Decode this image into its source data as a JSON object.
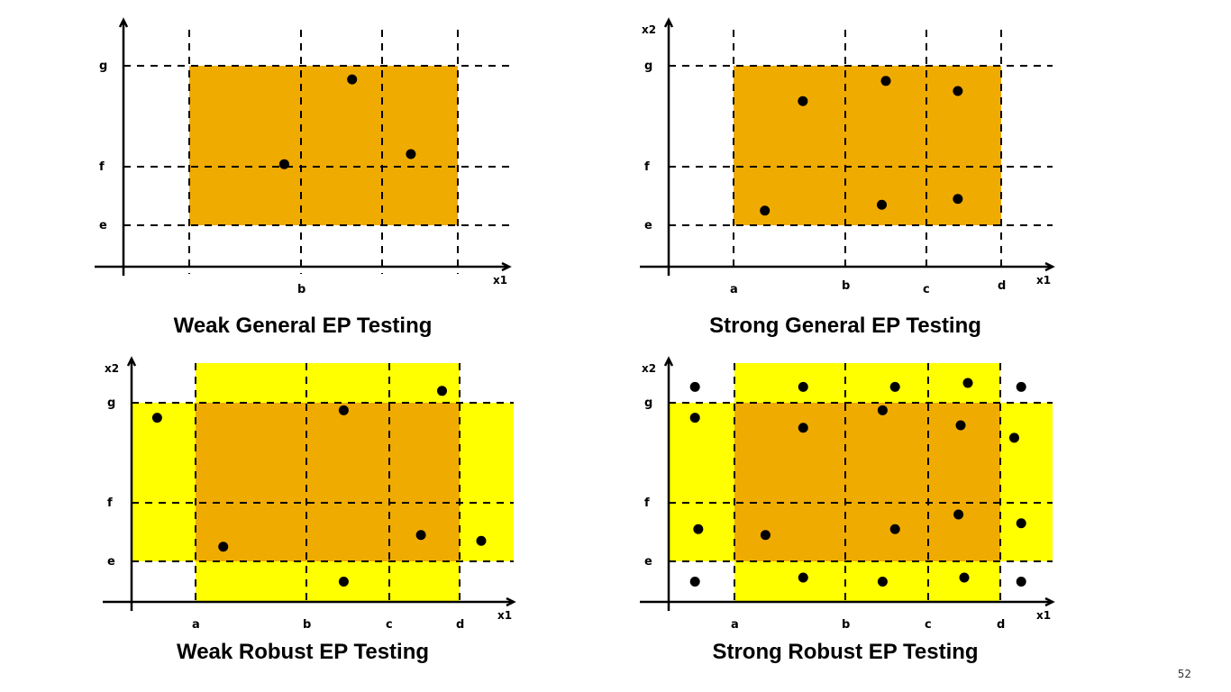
{
  "colors": {
    "core": "#F0AB00",
    "robust": "#FFFF00",
    "ink": "#000000"
  },
  "panels": [
    {
      "caption": "Weak General EP Testing",
      "x_label": "x1",
      "y_label": "",
      "x_ticks": [
        "",
        "b",
        "",
        ""
      ],
      "y_ticks": [
        "g",
        "f",
        "e"
      ],
      "robust": false,
      "points": [
        [
          0.85,
          1.05
        ],
        [
          1.63,
          2.73
        ],
        [
          2.38,
          1.25
        ]
      ]
    },
    {
      "caption": "Strong General EP Testing",
      "x_label": "x1",
      "y_label": "x2",
      "x_ticks": [
        "a",
        "b",
        "c",
        "d"
      ],
      "y_ticks": [
        "g",
        "f",
        "e"
      ],
      "robust": false,
      "points": [
        [
          0.62,
          2.3
        ],
        [
          1.5,
          2.7
        ],
        [
          2.42,
          2.5
        ],
        [
          0.28,
          0.25
        ],
        [
          1.45,
          0.35
        ],
        [
          2.42,
          0.45
        ]
      ]
    },
    {
      "caption": "Weak Robust EP Testing",
      "x_label": "x1",
      "y_label": "x2",
      "x_ticks": [
        "a",
        "b",
        "c",
        "d"
      ],
      "y_ticks": [
        "g",
        "f",
        "e"
      ],
      "robust": true,
      "points": [
        [
          -0.6,
          2.7
        ],
        [
          0.25,
          0.25
        ],
        [
          1.45,
          2.85
        ],
        [
          2.45,
          0.45
        ],
        [
          2.75,
          3.3
        ],
        [
          3.3,
          0.35
        ],
        [
          1.45,
          -0.5
        ]
      ]
    },
    {
      "caption": "Strong Robust EP Testing",
      "x_label": "x1",
      "y_label": "x2",
      "x_ticks": [
        "a",
        "b",
        "c",
        "d"
      ],
      "y_ticks": [
        "g",
        "f",
        "e"
      ],
      "robust": true,
      "points": [
        [
          -0.6,
          3.4
        ],
        [
          0.62,
          3.4
        ],
        [
          1.6,
          3.4
        ],
        [
          2.55,
          3.5
        ],
        [
          3.3,
          3.4
        ],
        [
          -0.6,
          2.7
        ],
        [
          0.62,
          2.5
        ],
        [
          1.45,
          2.85
        ],
        [
          2.45,
          2.55
        ],
        [
          3.2,
          2.3
        ],
        [
          -0.55,
          0.55
        ],
        [
          0.28,
          0.45
        ],
        [
          1.6,
          0.55
        ],
        [
          2.42,
          0.8
        ],
        [
          3.3,
          0.65
        ],
        [
          -0.6,
          -0.5
        ],
        [
          0.62,
          -0.4
        ],
        [
          1.45,
          -0.5
        ],
        [
          2.5,
          -0.4
        ],
        [
          3.3,
          -0.5
        ]
      ]
    }
  ],
  "page_number": "52"
}
